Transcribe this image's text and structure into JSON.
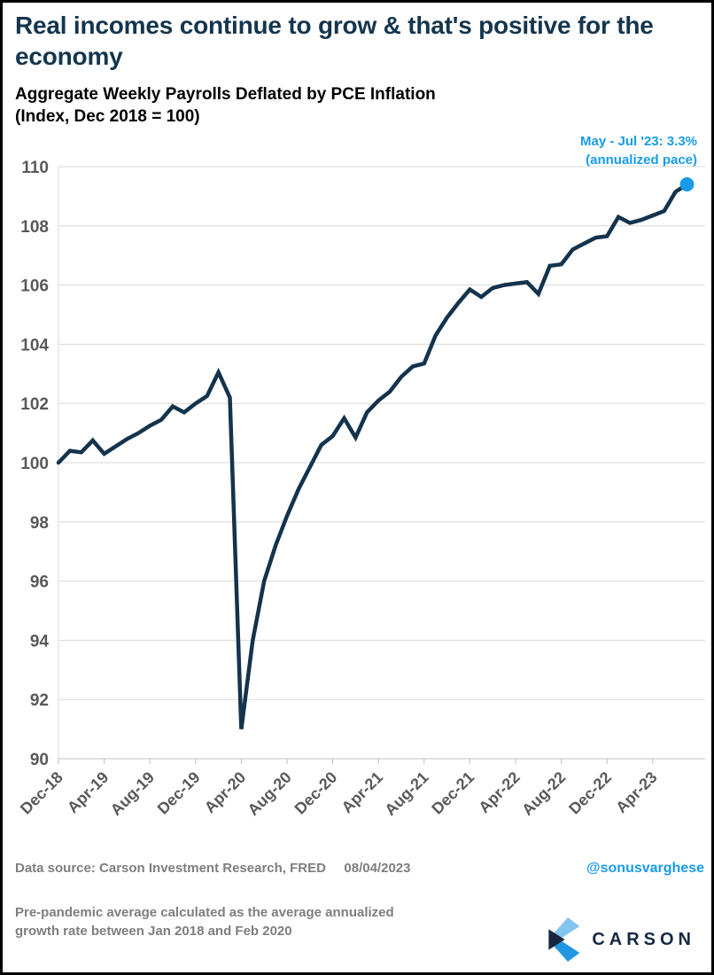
{
  "header": {
    "title": "Real incomes continue to grow & that's positive for the economy",
    "chart_heading": "Aggregate Weekly Payrolls Deflated by PCE Inflation",
    "chart_units": "(Index, Dec 2018 = 100)"
  },
  "footer": {
    "data_source": "Data source: Carson Investment Research, FRED",
    "date": "08/04/2023",
    "handle": "@sonusvarghese",
    "note": "Pre-pandemic average calculated as the average annualized growth rate between Jan 2018 and Feb 2020",
    "logo_text": "CARSON"
  },
  "colors": {
    "title_navy": "#15354E",
    "line_navy": "#14334D",
    "accent_blue": "#189CE9",
    "axis_label_gray": "#595959",
    "footer_gray": "#7E7E7E",
    "gridline_gray": "#D8D8D8",
    "tick_gray": "#BFBFBF",
    "logo_light_blue": "#85C6F0",
    "logo_blue": "#2396E2",
    "logo_navy": "#18263E"
  },
  "chart_data": {
    "type": "line",
    "title": "Aggregate Weekly Payrolls Deflated by PCE Inflation",
    "xlabel": "",
    "ylabel": "Index, Dec 2018 = 100",
    "ylim": [
      90,
      110
    ],
    "ytick_step": 2,
    "y_tick_labels": [
      "90",
      "92",
      "94",
      "96",
      "98",
      "100",
      "102",
      "104",
      "106",
      "108",
      "110"
    ],
    "x_tick_interval": 4,
    "x_tick_labels": [
      "Dec-18",
      "Apr-19",
      "Aug-19",
      "Dec-19",
      "Apr-20",
      "Aug-20",
      "Dec-20",
      "Apr-21",
      "Aug-21",
      "Dec-21",
      "Apr-22",
      "Aug-22",
      "Dec-22",
      "Apr-23"
    ],
    "grid": true,
    "legend": "none",
    "line_color": "#14334D",
    "dot_color": "#189CE9",
    "annotation": {
      "line1": "May - Jul '23: 3.3%",
      "line2": "(annualized pace)"
    },
    "categories": [
      "Dec-18",
      "Jan-19",
      "Feb-19",
      "Mar-19",
      "Apr-19",
      "May-19",
      "Jun-19",
      "Jul-19",
      "Aug-19",
      "Sep-19",
      "Oct-19",
      "Nov-19",
      "Dec-19",
      "Jan-20",
      "Feb-20",
      "Mar-20",
      "Apr-20",
      "May-20",
      "Jun-20",
      "Jul-20",
      "Aug-20",
      "Sep-20",
      "Oct-20",
      "Nov-20",
      "Dec-20",
      "Jan-21",
      "Feb-21",
      "Mar-21",
      "Apr-21",
      "May-21",
      "Jun-21",
      "Jul-21",
      "Aug-21",
      "Sep-21",
      "Oct-21",
      "Nov-21",
      "Dec-21",
      "Jan-22",
      "Feb-22",
      "Mar-22",
      "Apr-22",
      "May-22",
      "Jun-22",
      "Jul-22",
      "Aug-22",
      "Sep-22",
      "Oct-22",
      "Nov-22",
      "Dec-22",
      "Jan-23",
      "Feb-23",
      "Mar-23",
      "Apr-23",
      "May-23",
      "Jun-23",
      "Jul-23"
    ],
    "values": [
      100.0,
      100.4,
      100.35,
      100.75,
      100.3,
      100.55,
      100.8,
      101.0,
      101.25,
      101.45,
      101.9,
      101.7,
      102.0,
      102.25,
      103.05,
      102.2,
      91.0,
      94.0,
      96.0,
      97.2,
      98.2,
      99.1,
      99.85,
      100.6,
      100.9,
      101.5,
      100.85,
      101.7,
      102.1,
      102.4,
      102.9,
      103.25,
      103.35,
      104.3,
      104.9,
      105.4,
      105.85,
      105.6,
      105.9,
      106.0,
      106.05,
      106.1,
      105.7,
      106.65,
      106.7,
      107.2,
      107.4,
      107.6,
      107.65,
      108.3,
      108.1,
      108.2,
      108.35,
      108.5,
      109.15,
      109.4
    ]
  }
}
